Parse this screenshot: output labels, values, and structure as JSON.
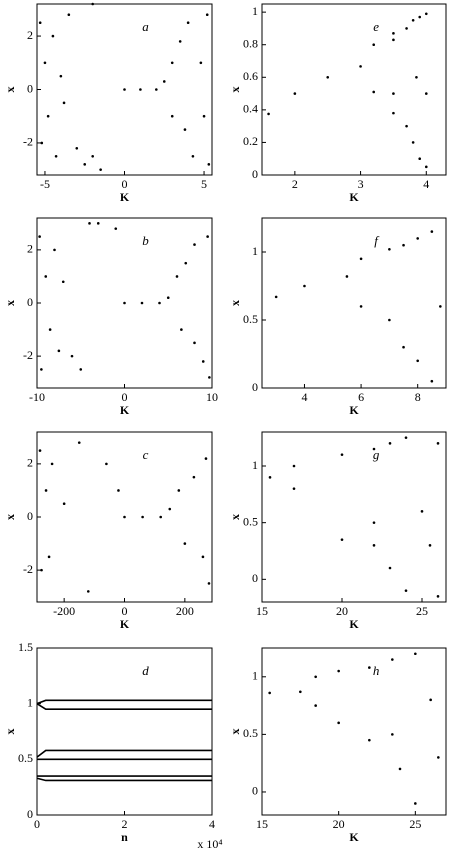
{
  "chart_data": [
    {
      "type": "scatter",
      "label": "a",
      "xlabel": "K",
      "ylabel": "x",
      "xlim": [
        -5.5,
        5.5
      ],
      "xticks": [
        -5,
        0,
        5
      ],
      "ylim": [
        -3.2,
        3.2
      ],
      "yticks": [
        -2,
        0,
        2
      ],
      "color": "#000000",
      "x": [
        -5.3,
        -5.2,
        -5,
        -4.8,
        -4.5,
        -4.3,
        -4,
        -3.8,
        -3.5,
        -3,
        -2.5,
        -2,
        -1.5,
        -2,
        0,
        1,
        2,
        2.5,
        3,
        3,
        3.5,
        3.8,
        4,
        4.3,
        4.8,
        5,
        5.2,
        5.3
      ],
      "values": [
        2.5,
        -2,
        1,
        -1,
        2,
        -2.5,
        0.5,
        -0.5,
        2.8,
        -2.2,
        -2.8,
        3.2,
        -3,
        -2.5,
        0,
        0,
        0,
        0.3,
        1,
        -1,
        1.8,
        -1.5,
        2.5,
        -2.5,
        1,
        -1,
        2.8,
        -2.8
      ]
    },
    {
      "type": "scatter",
      "label": "e",
      "xlabel": "K",
      "ylabel": "x",
      "xlim": [
        1.5,
        4.3
      ],
      "xticks": [
        2,
        3,
        4
      ],
      "ylim": [
        0,
        1.05
      ],
      "yticks": [
        0,
        0.2,
        0.4,
        0.6,
        0.8,
        1
      ],
      "color": "#000000",
      "x": [
        1.6,
        2,
        2.5,
        3,
        3.2,
        3.2,
        3.5,
        3.5,
        3.5,
        3.5,
        3.7,
        3.7,
        3.8,
        3.8,
        3.9,
        3.9,
        4,
        4,
        3.85,
        4
      ],
      "values": [
        0.375,
        0.5,
        0.6,
        0.667,
        0.8,
        0.51,
        0.87,
        0.38,
        0.83,
        0.5,
        0.9,
        0.3,
        0.95,
        0.2,
        0.1,
        0.97,
        0.05,
        0.99,
        0.6,
        0.5
      ]
    },
    {
      "type": "scatter",
      "label": "b",
      "xlabel": "K",
      "ylabel": "x",
      "xlim": [
        -10,
        10
      ],
      "xticks": [
        -10,
        0,
        10
      ],
      "ylim": [
        -3.2,
        3.2
      ],
      "yticks": [
        -2,
        0,
        2
      ],
      "color": "#000000",
      "x": [
        -9.7,
        -9.5,
        -9,
        -8.5,
        -8,
        -7.5,
        -7,
        -6,
        -5,
        -4,
        -3,
        -1,
        0,
        2,
        4,
        5,
        6,
        6.5,
        7,
        8,
        8,
        9,
        9.5,
        9.7
      ],
      "values": [
        2.5,
        -2.5,
        1,
        -1,
        2,
        -1.8,
        0.8,
        -2,
        -2.5,
        3,
        3,
        2.8,
        0,
        0,
        0,
        0.2,
        1,
        -1,
        1.5,
        -1.5,
        2.2,
        -2.2,
        2.5,
        -2.8
      ]
    },
    {
      "type": "scatter",
      "label": "f",
      "xlabel": "K",
      "ylabel": "x",
      "xlim": [
        2.5,
        9
      ],
      "xticks": [
        4,
        6,
        8
      ],
      "ylim": [
        0,
        1.25
      ],
      "yticks": [
        0,
        0.5,
        1
      ],
      "color": "#000000",
      "x": [
        3,
        4,
        5.5,
        6,
        6,
        7,
        7,
        7.5,
        7.5,
        8,
        8,
        8.5,
        8.5,
        8.8
      ],
      "values": [
        0.67,
        0.75,
        0.82,
        0.95,
        0.6,
        1.02,
        0.5,
        1.05,
        0.3,
        1.1,
        0.2,
        1.15,
        0.05,
        0.6
      ]
    },
    {
      "type": "scatter",
      "label": "c",
      "xlabel": "K",
      "ylabel": "x",
      "xlim": [
        -290,
        290
      ],
      "xticks": [
        -200,
        0,
        200
      ],
      "ylim": [
        -3.2,
        3.2
      ],
      "yticks": [
        -2,
        0,
        2
      ],
      "color": "#000000",
      "x": [
        -280,
        -275,
        -260,
        -250,
        -240,
        -200,
        -150,
        -120,
        -60,
        -20,
        0,
        60,
        120,
        150,
        180,
        200,
        230,
        260,
        270,
        280
      ],
      "values": [
        2.5,
        -2,
        1,
        -1.5,
        2,
        0.5,
        2.8,
        -2.8,
        2,
        1,
        0,
        0,
        0,
        0.3,
        1,
        -1,
        1.5,
        -1.5,
        2.2,
        -2.5
      ]
    },
    {
      "type": "scatter",
      "label": "g",
      "xlabel": "K",
      "ylabel": "x",
      "xlim": [
        15,
        26.5
      ],
      "xticks": [
        15,
        20,
        25
      ],
      "ylim": [
        -0.2,
        1.3
      ],
      "yticks": [
        0,
        0.5,
        1
      ],
      "color": "#000000",
      "x": [
        15.5,
        17,
        17,
        20,
        20,
        22,
        22,
        22,
        23,
        23,
        24,
        24,
        25,
        26,
        26,
        25.5
      ],
      "values": [
        0.9,
        1,
        0.8,
        1.1,
        0.35,
        1.15,
        0.5,
        0.3,
        1.2,
        0.1,
        1.25,
        -0.1,
        0.6,
        1.2,
        -0.15,
        0.3
      ]
    },
    {
      "type": "line",
      "label": "d",
      "xlabel": "n",
      "ylabel": "x",
      "x_scale": "x 10⁴",
      "xlim": [
        0,
        40000
      ],
      "xticks": [
        0,
        {
          "value": 20000,
          "label": "2"
        },
        {
          "value": 40000,
          "label": "4"
        }
      ],
      "ylim": [
        0,
        1.5
      ],
      "yticks": [
        0,
        0.5,
        1,
        1.5
      ],
      "x": [
        0,
        2000,
        40000
      ],
      "series": [
        {
          "color": "#000000",
          "values": [
            1.0,
            1.03,
            1.03
          ]
        },
        {
          "color": "#000000",
          "values": [
            1.0,
            0.95,
            0.95
          ]
        },
        {
          "color": "#000000",
          "values": [
            0.52,
            0.58,
            0.58
          ]
        },
        {
          "color": "#000000",
          "values": [
            0.5,
            0.5,
            0.5
          ]
        },
        {
          "color": "#000000",
          "values": [
            0.35,
            0.35,
            0.35
          ]
        },
        {
          "color": "#000000",
          "values": [
            0.33,
            0.31,
            0.31
          ]
        }
      ]
    },
    {
      "type": "scatter",
      "label": "h",
      "xlabel": "K",
      "ylabel": "x",
      "xlim": [
        15,
        27
      ],
      "xticks": [
        15,
        20,
        25
      ],
      "ylim": [
        -0.2,
        1.25
      ],
      "yticks": [
        0,
        0.5,
        1
      ],
      "color": "#000000",
      "x": [
        15.5,
        17.5,
        18.5,
        18.5,
        20,
        20,
        22,
        22,
        23.5,
        23.5,
        24,
        25,
        25,
        26,
        26.5
      ],
      "values": [
        0.86,
        0.87,
        1,
        0.75,
        1.05,
        0.6,
        1.08,
        0.45,
        1.15,
        0.5,
        0.2,
        1.2,
        -0.1,
        0.8,
        0.3
      ]
    }
  ]
}
